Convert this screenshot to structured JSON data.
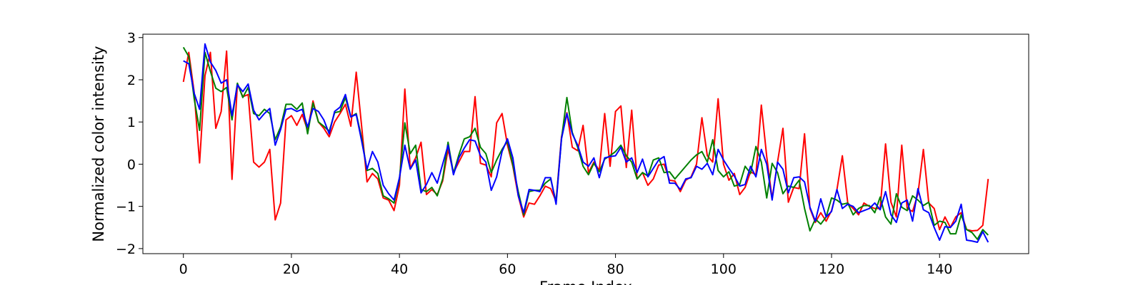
{
  "chart_data": {
    "type": "line",
    "xlabel": "Frame Index",
    "ylabel": "Normalized color intensity",
    "xlim": [
      -7.5,
      156.5
    ],
    "ylim": [
      -2.12,
      3.08
    ],
    "xticks": [
      0,
      20,
      40,
      60,
      80,
      100,
      120,
      140
    ],
    "yticks": [
      -2,
      -1,
      0,
      1,
      2,
      3
    ],
    "grid": false,
    "legend": "none",
    "x": [
      0,
      1,
      2,
      3,
      4,
      5,
      6,
      7,
      8,
      9,
      10,
      11,
      12,
      13,
      14,
      15,
      16,
      17,
      18,
      19,
      20,
      21,
      22,
      23,
      24,
      25,
      26,
      27,
      28,
      29,
      30,
      31,
      32,
      33,
      34,
      35,
      36,
      37,
      38,
      39,
      40,
      41,
      42,
      43,
      44,
      45,
      46,
      47,
      48,
      49,
      50,
      51,
      52,
      53,
      54,
      55,
      56,
      57,
      58,
      59,
      60,
      61,
      62,
      63,
      64,
      65,
      66,
      67,
      68,
      69,
      70,
      71,
      72,
      73,
      74,
      75,
      76,
      77,
      78,
      79,
      80,
      81,
      82,
      83,
      84,
      85,
      86,
      87,
      88,
      89,
      90,
      91,
      92,
      93,
      94,
      95,
      96,
      97,
      98,
      99,
      100,
      101,
      102,
      103,
      104,
      105,
      106,
      107,
      108,
      109,
      110,
      111,
      112,
      113,
      114,
      115,
      116,
      117,
      118,
      119,
      120,
      121,
      122,
      123,
      124,
      125,
      126,
      127,
      128,
      129,
      130,
      131,
      132,
      133,
      134,
      135,
      136,
      137,
      138,
      139,
      140,
      141,
      142,
      143,
      144,
      145,
      146,
      147,
      148,
      149
    ],
    "series": [
      {
        "color": "#ff0000",
        "values": [
          1.95,
          2.65,
          1.7,
          0.03,
          2.1,
          2.65,
          0.85,
          1.25,
          2.68,
          -0.36,
          1.9,
          1.6,
          1.65,
          0.05,
          -0.07,
          0.05,
          0.35,
          -1.32,
          -0.92,
          1.05,
          1.15,
          0.92,
          1.18,
          0.8,
          1.5,
          1.0,
          0.85,
          0.65,
          1.0,
          1.2,
          1.42,
          0.9,
          2.18,
          0.9,
          -0.42,
          -0.22,
          -0.35,
          -0.8,
          -0.85,
          -1.1,
          -0.5,
          1.78,
          -0.1,
          0.15,
          0.52,
          -0.72,
          -0.6,
          -0.72,
          -0.4,
          0.35,
          -0.2,
          0.05,
          0.3,
          0.3,
          1.6,
          0.02,
          -0.02,
          -0.3,
          0.98,
          1.2,
          0.45,
          -0.05,
          -0.75,
          -1.25,
          -0.92,
          -0.95,
          -0.75,
          -0.52,
          -0.58,
          -0.88,
          0.65,
          1.22,
          0.4,
          0.32,
          0.92,
          -0.2,
          0.05,
          -0.15,
          1.2,
          -0.05,
          1.25,
          1.38,
          -0.08,
          1.28,
          -0.35,
          -0.2,
          -0.5,
          -0.35,
          -0.02,
          0.0,
          -0.38,
          -0.4,
          -0.65,
          -0.38,
          -0.3,
          0.0,
          1.1,
          0.2,
          0.05,
          1.55,
          0.0,
          -0.38,
          -0.22,
          -0.72,
          -0.55,
          -0.18,
          -0.25,
          1.4,
          0.18,
          -0.82,
          0.05,
          0.85,
          -0.9,
          -0.55,
          -0.58,
          0.72,
          -1.05,
          -1.38,
          -1.15,
          -1.35,
          -1.1,
          -0.6,
          0.2,
          -0.92,
          -1.05,
          -1.2,
          -0.92,
          -1.0,
          -1.05,
          -1.05,
          0.48,
          -0.9,
          -1.25,
          0.45,
          -1.05,
          -1.12,
          -0.7,
          0.35,
          -0.92,
          -1.05,
          -1.55,
          -1.25,
          -1.5,
          -1.25,
          -1.15,
          -1.55,
          -1.58,
          -1.57,
          -1.45,
          -0.35
        ]
      },
      {
        "color": "#008000",
        "values": [
          2.77,
          2.55,
          1.55,
          0.8,
          2.65,
          2.2,
          1.8,
          1.72,
          1.82,
          1.05,
          1.92,
          1.58,
          1.82,
          1.2,
          1.15,
          1.3,
          1.2,
          0.58,
          0.88,
          1.42,
          1.42,
          1.3,
          1.45,
          0.72,
          1.45,
          1.0,
          0.9,
          0.78,
          1.22,
          1.25,
          1.58,
          1.12,
          1.2,
          0.62,
          -0.15,
          -0.1,
          -0.22,
          -0.75,
          -0.82,
          -0.92,
          -0.35,
          0.98,
          0.25,
          0.45,
          -0.6,
          -0.65,
          -0.55,
          -0.75,
          -0.35,
          0.52,
          -0.22,
          0.22,
          0.6,
          0.65,
          0.85,
          0.4,
          0.25,
          -0.2,
          0.1,
          0.35,
          0.55,
          -0.02,
          -0.65,
          -1.2,
          -0.65,
          -0.62,
          -0.62,
          -0.45,
          -0.35,
          -0.9,
          0.6,
          1.58,
          0.75,
          0.4,
          -0.05,
          -0.25,
          0.02,
          -0.18,
          0.12,
          0.2,
          0.3,
          0.45,
          0.2,
          0.05,
          -0.35,
          -0.2,
          -0.28,
          0.1,
          0.15,
          -0.2,
          -0.18,
          -0.35,
          -0.2,
          -0.05,
          0.1,
          0.22,
          0.3,
          0.05,
          0.58,
          -0.15,
          -0.3,
          -0.18,
          -0.52,
          -0.48,
          -0.05,
          -0.22,
          0.42,
          0.05,
          -0.8,
          0.02,
          -0.2,
          -0.7,
          -0.52,
          -0.55,
          -0.38,
          -1.05,
          -1.58,
          -1.3,
          -1.42,
          -1.25,
          -0.8,
          -0.85,
          -0.95,
          -0.92,
          -1.2,
          -1.05,
          -0.98,
          -0.98,
          -1.15,
          -0.78,
          -1.25,
          -1.42,
          -0.7,
          -1.02,
          -1.1,
          -0.75,
          -0.85,
          -0.98,
          -0.9,
          -1.45,
          -1.35,
          -1.38,
          -1.65,
          -1.65,
          -1.2,
          -1.55,
          -1.62,
          -1.78,
          -1.55,
          -1.68
        ]
      },
      {
        "color": "#0000ff",
        "values": [
          2.45,
          2.38,
          1.68,
          1.3,
          2.85,
          2.42,
          2.22,
          1.92,
          2.0,
          1.15,
          1.88,
          1.72,
          1.9,
          1.28,
          1.05,
          1.2,
          1.32,
          0.45,
          0.82,
          1.3,
          1.32,
          1.25,
          1.3,
          0.88,
          1.32,
          1.25,
          1.05,
          0.72,
          1.25,
          1.35,
          1.65,
          1.12,
          1.18,
          0.55,
          -0.12,
          0.3,
          0.05,
          -0.5,
          -0.7,
          -0.85,
          -0.32,
          0.45,
          -0.12,
          0.1,
          -0.68,
          -0.48,
          -0.2,
          -0.45,
          0.0,
          0.45,
          -0.25,
          0.15,
          0.38,
          0.58,
          0.55,
          0.2,
          0.05,
          -0.62,
          -0.3,
          0.3,
          0.6,
          0.15,
          -0.75,
          -1.15,
          -0.6,
          -0.62,
          -0.65,
          -0.32,
          -0.32,
          -0.95,
          0.6,
          1.2,
          0.72,
          0.45,
          0.05,
          -0.05,
          0.15,
          -0.32,
          0.15,
          0.18,
          0.2,
          0.4,
          0.05,
          0.15,
          -0.2,
          0.12,
          -0.3,
          -0.1,
          0.1,
          0.18,
          -0.45,
          -0.45,
          -0.6,
          -0.35,
          -0.32,
          -0.05,
          -0.12,
          0.02,
          -0.25,
          0.35,
          0.1,
          -0.1,
          -0.28,
          -0.52,
          -0.48,
          -0.05,
          -0.3,
          0.35,
          0.0,
          -0.85,
          0.05,
          -0.12,
          -0.68,
          -0.32,
          -0.3,
          -0.42,
          -1.02,
          -1.35,
          -0.82,
          -1.25,
          -1.12,
          -0.6,
          -1.05,
          -0.95,
          -1.0,
          -1.15,
          -1.1,
          -1.05,
          -0.92,
          -1.08,
          -0.65,
          -1.2,
          -1.38,
          -0.92,
          -0.85,
          -1.35,
          -0.58,
          -1.08,
          -1.15,
          -1.5,
          -1.8,
          -1.48,
          -1.5,
          -1.35,
          -0.95,
          -1.8,
          -1.82,
          -1.85,
          -1.6,
          -1.85
        ]
      }
    ]
  }
}
